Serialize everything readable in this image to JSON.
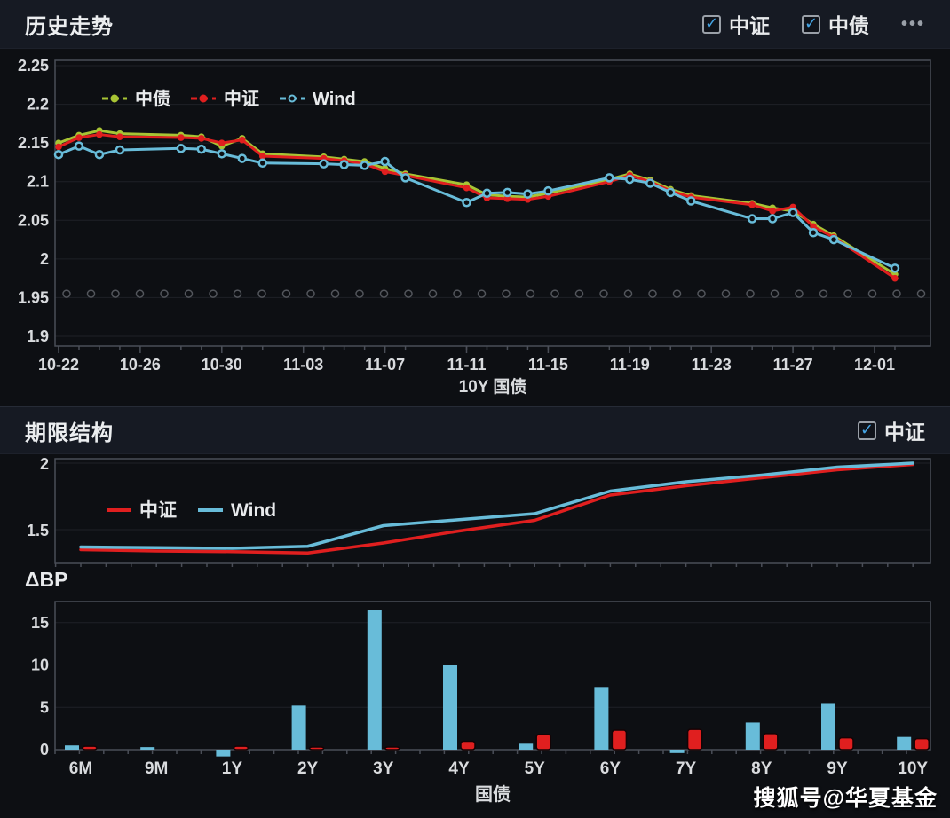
{
  "icons": {
    "check": "✓",
    "more": "•••"
  },
  "colors": {
    "page_bg": "#0d0f13",
    "header_bg": "#161a23",
    "plot_border": "#4a4e57",
    "grid": "#1e2127",
    "axis_text": "#d9dbde",
    "title_text": "#eceef0",
    "red": "#e01f1f",
    "green": "#a8c434",
    "blue": "#68bcd9",
    "check_blue": "#45a5e5",
    "dotted_ref": "#53565c",
    "watermark_text": "#ffffff"
  },
  "header": {
    "title": "历史走势",
    "checkboxes": [
      {
        "label": "中证",
        "checked": true
      },
      {
        "label": "中债",
        "checked": true
      }
    ]
  },
  "term_header": {
    "title": "期限结构",
    "checkboxes": [
      {
        "label": "中证",
        "checked": true
      }
    ]
  },
  "delta_label": "ΔBP",
  "watermark": "搜狐号@华夏基金",
  "chart_data": [
    {
      "id": "history",
      "type": "line",
      "title": "历史走势",
      "xlabel": "10Y 国债",
      "ylim": [
        1.9,
        2.25
      ],
      "y_ticks": [
        2.25,
        2.2,
        2.15,
        2.1,
        2.05,
        2.0,
        1.95,
        1.9
      ],
      "y_tick_labels": [
        "2.25",
        "2.2",
        "2.15",
        "2.1",
        "2.05",
        "2",
        "1.95",
        "1.9"
      ],
      "x_tick_labels": [
        "10-22",
        "10-26",
        "10-30",
        "11-03",
        "11-07",
        "11-11",
        "11-15",
        "11-19",
        "11-23",
        "11-27",
        "12-01"
      ],
      "x_tick_offsets": [
        0,
        4,
        8,
        12,
        16,
        20,
        24,
        28,
        32,
        36,
        40
      ],
      "dates": [
        "10-22",
        "10-23",
        "10-24",
        "10-25",
        "10-28",
        "10-29",
        "10-30",
        "10-31",
        "11-01",
        "11-04",
        "11-05",
        "11-06",
        "11-07",
        "11-08",
        "11-11",
        "11-12",
        "11-13",
        "11-14",
        "11-15",
        "11-18",
        "11-19",
        "11-20",
        "11-21",
        "11-22",
        "11-25",
        "11-26",
        "11-27",
        "11-28",
        "11-29",
        "12-02"
      ],
      "day_offsets": [
        0,
        1,
        2,
        3,
        6,
        7,
        8,
        9,
        10,
        13,
        14,
        15,
        16,
        17,
        20,
        21,
        22,
        23,
        24,
        27,
        28,
        29,
        30,
        31,
        34,
        35,
        36,
        37,
        38,
        41
      ],
      "reference_dotted_y": 1.955,
      "legend_position": "top-left-inside",
      "grid": true,
      "series": [
        {
          "name": "中债",
          "color": "#a8c434",
          "marker": "solid",
          "values": [
            2.15,
            2.16,
            2.166,
            2.162,
            2.16,
            2.158,
            2.146,
            2.156,
            2.136,
            2.132,
            2.129,
            2.126,
            2.117,
            2.11,
            2.096,
            2.083,
            2.081,
            2.08,
            2.085,
            2.103,
            2.11,
            2.102,
            2.09,
            2.082,
            2.072,
            2.066,
            2.062,
            2.045,
            2.03,
            1.98
          ]
        },
        {
          "name": "中证",
          "color": "#e01f1f",
          "marker": "solid",
          "values": [
            2.145,
            2.157,
            2.161,
            2.158,
            2.157,
            2.156,
            2.15,
            2.154,
            2.133,
            2.13,
            2.127,
            2.123,
            2.113,
            2.108,
            2.092,
            2.079,
            2.078,
            2.077,
            2.081,
            2.1,
            2.108,
            2.1,
            2.088,
            2.08,
            2.07,
            2.062,
            2.067,
            2.042,
            2.028,
            1.975
          ]
        },
        {
          "name": "Wind",
          "color": "#68bcd9",
          "marker": "ring",
          "values": [
            2.135,
            2.146,
            2.135,
            2.141,
            2.143,
            2.142,
            2.136,
            2.13,
            2.124,
            2.123,
            2.122,
            2.121,
            2.126,
            2.105,
            2.073,
            2.085,
            2.086,
            2.084,
            2.088,
            2.105,
            2.103,
            2.098,
            2.086,
            2.075,
            2.052,
            2.052,
            2.06,
            2.034,
            2.025,
            1.988
          ]
        }
      ]
    },
    {
      "id": "term_structure",
      "type": "line",
      "title": "期限结构",
      "categories": [
        "6M",
        "9M",
        "1Y",
        "2Y",
        "3Y",
        "4Y",
        "5Y",
        "6Y",
        "7Y",
        "8Y",
        "9Y",
        "10Y"
      ],
      "ylim": [
        1.3,
        2.0
      ],
      "y_ticks": [
        2.0,
        1.5
      ],
      "y_tick_labels": [
        "2",
        "1.5"
      ],
      "legend_position": "top-left-inside",
      "series": [
        {
          "name": "中证",
          "color": "#e01f1f",
          "values": [
            1.35,
            1.34,
            1.335,
            1.325,
            1.4,
            1.49,
            1.57,
            1.76,
            1.83,
            1.89,
            1.95,
            1.99
          ]
        },
        {
          "name": "Wind",
          "color": "#68bcd9",
          "values": [
            1.37,
            1.365,
            1.36,
            1.375,
            1.53,
            1.575,
            1.62,
            1.79,
            1.86,
            1.91,
            1.97,
            2.0
          ]
        }
      ]
    },
    {
      "id": "delta_bp",
      "type": "bar",
      "title": "ΔBP",
      "xlabel": "国债",
      "categories": [
        "6M",
        "9M",
        "1Y",
        "2Y",
        "3Y",
        "4Y",
        "5Y",
        "6Y",
        "7Y",
        "8Y",
        "9Y",
        "10Y"
      ],
      "ylim": [
        -1,
        17.5
      ],
      "y_ticks": [
        15,
        10,
        5,
        0
      ],
      "y_tick_labels": [
        "15",
        "10",
        "5",
        "0"
      ],
      "series": [
        {
          "name": "Wind",
          "color": "#68bcd9",
          "values": [
            0.5,
            0.3,
            -0.8,
            5.2,
            16.5,
            10.0,
            0.7,
            7.4,
            -0.4,
            3.2,
            5.5,
            1.5
          ]
        },
        {
          "name": "中证",
          "color": "#e01f1f",
          "values": [
            0.4,
            0,
            0.4,
            0.3,
            0.3,
            1.0,
            1.8,
            2.3,
            2.4,
            1.9,
            1.4,
            1.3
          ]
        }
      ]
    }
  ]
}
